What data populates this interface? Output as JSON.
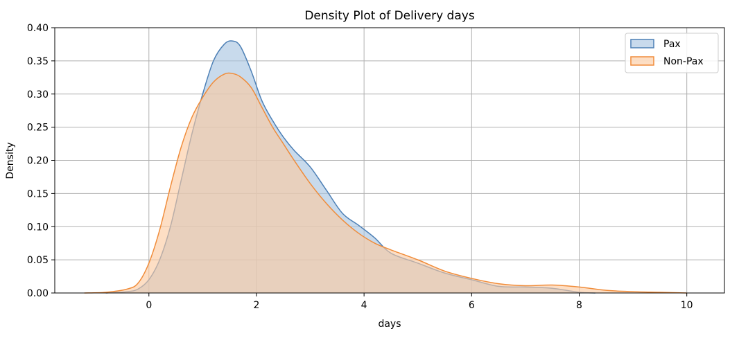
{
  "chart_data": {
    "type": "area",
    "title": "Density Plot of Delivery days",
    "xlabel": "days",
    "ylabel": "Density",
    "xlim": [
      -1.75,
      10.7
    ],
    "ylim": [
      0,
      0.4
    ],
    "xticks": [
      0,
      2,
      4,
      6,
      8,
      10
    ],
    "yticks": [
      0.0,
      0.05,
      0.1,
      0.15,
      0.2,
      0.25,
      0.3,
      0.35,
      0.4
    ],
    "xtick_labels": [
      "0",
      "2",
      "4",
      "6",
      "8",
      "10"
    ],
    "ytick_labels": [
      "0.00",
      "0.05",
      "0.10",
      "0.15",
      "0.20",
      "0.25",
      "0.30",
      "0.35",
      "0.40"
    ],
    "grid": true,
    "legend_position": "top-right",
    "series": [
      {
        "name": "Pax",
        "color": "#4c7fb5",
        "fill": "#a7c4e0",
        "x": [
          -0.8,
          -0.4,
          -0.2,
          0,
          0.2,
          0.4,
          0.6,
          0.8,
          1.0,
          1.2,
          1.4,
          1.55,
          1.7,
          1.9,
          2.1,
          2.3,
          2.5,
          2.7,
          3.0,
          3.3,
          3.6,
          3.9,
          4.2,
          4.5,
          5.0,
          5.5,
          6.0,
          6.5,
          7.0,
          7.5,
          8.0,
          8.3
        ],
        "y": [
          0.0,
          0.002,
          0.006,
          0.02,
          0.05,
          0.1,
          0.17,
          0.24,
          0.3,
          0.35,
          0.375,
          0.38,
          0.372,
          0.335,
          0.29,
          0.26,
          0.235,
          0.215,
          0.19,
          0.155,
          0.12,
          0.102,
          0.083,
          0.06,
          0.045,
          0.03,
          0.02,
          0.01,
          0.009,
          0.007,
          0.001,
          0.0
        ]
      },
      {
        "name": "Non-Pax",
        "color": "#f08c3a",
        "fill": "#fbc9a0",
        "x": [
          -1.2,
          -0.8,
          -0.4,
          -0.2,
          0,
          0.2,
          0.4,
          0.6,
          0.8,
          1.0,
          1.2,
          1.4,
          1.55,
          1.7,
          1.9,
          2.1,
          2.3,
          2.5,
          2.7,
          3.0,
          3.3,
          3.6,
          3.9,
          4.2,
          4.5,
          5.0,
          5.5,
          6.0,
          6.5,
          7.0,
          7.5,
          8.0,
          8.5,
          9.0,
          9.5,
          10.0
        ],
        "y": [
          0.0,
          0.001,
          0.006,
          0.015,
          0.045,
          0.095,
          0.16,
          0.22,
          0.265,
          0.295,
          0.318,
          0.33,
          0.331,
          0.326,
          0.31,
          0.28,
          0.25,
          0.225,
          0.2,
          0.165,
          0.135,
          0.11,
          0.09,
          0.075,
          0.065,
          0.05,
          0.033,
          0.022,
          0.014,
          0.011,
          0.012,
          0.009,
          0.004,
          0.002,
          0.001,
          0.0
        ]
      }
    ]
  }
}
